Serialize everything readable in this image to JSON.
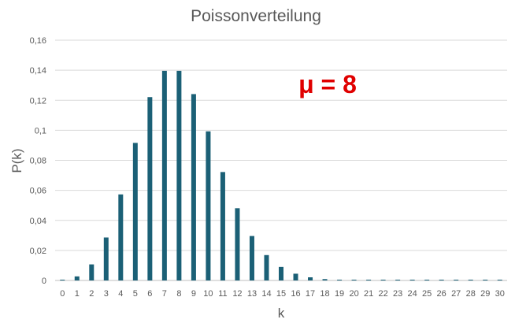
{
  "chart_data": {
    "type": "bar",
    "title": "Poissonverteilung",
    "xlabel": "k",
    "ylabel": "P(k)",
    "annotation": "μ = 8",
    "categories": [
      "0",
      "1",
      "2",
      "3",
      "4",
      "5",
      "6",
      "7",
      "8",
      "9",
      "10",
      "11",
      "12",
      "13",
      "14",
      "15",
      "16",
      "17",
      "18",
      "19",
      "20",
      "21",
      "22",
      "23",
      "24",
      "25",
      "26",
      "27",
      "28",
      "29",
      "30"
    ],
    "values": [
      0.0003,
      0.0027,
      0.0107,
      0.0286,
      0.0573,
      0.0916,
      0.1221,
      0.1396,
      0.1396,
      0.1241,
      0.0993,
      0.0722,
      0.0481,
      0.0296,
      0.0169,
      0.009,
      0.0045,
      0.0021,
      0.0009,
      0.0004,
      0.0002,
      0.0001,
      0.0,
      0.0,
      0.0,
      0.0,
      0.0,
      0.0,
      0.0,
      0.0,
      0.0
    ],
    "ylim": [
      0,
      0.16
    ],
    "yticks": [
      "0",
      "0,02",
      "0,04",
      "0,06",
      "0,08",
      "0,1",
      "0,12",
      "0,14",
      "0,16"
    ],
    "grid": true,
    "legend": "none",
    "colors": {
      "bar": "#1b6076",
      "annotation": "#e00000"
    }
  }
}
